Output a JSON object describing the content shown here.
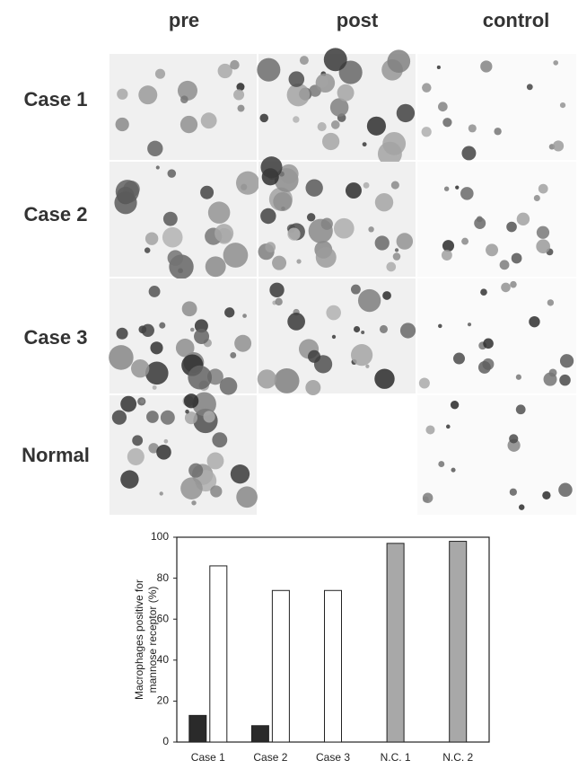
{
  "panels": {
    "columns": [
      "pre",
      "post",
      "control"
    ],
    "rows": [
      "Case 1",
      "Case 2",
      "Case 3",
      "Normal"
    ]
  },
  "chart_data": {
    "type": "bar",
    "y_label": [
      "Macrophages positive for",
      "mannose receptor (%)"
    ],
    "categories": [
      "Case 1",
      "Case 2",
      "Case 3",
      "N.C. 1",
      "N.C. 2"
    ],
    "series": [
      {
        "color": "#2a2a2a",
        "values": [
          13,
          8,
          null,
          null,
          null
        ]
      },
      {
        "color": "#ffffff",
        "values": [
          86,
          74,
          74,
          null,
          null
        ]
      },
      {
        "color": "#a8a8a8",
        "values": [
          null,
          null,
          null,
          97,
          98
        ]
      }
    ],
    "ylim": [
      0,
      100
    ],
    "yticks": [
      0,
      20,
      40,
      60,
      80,
      100
    ],
    "grid": false
  }
}
